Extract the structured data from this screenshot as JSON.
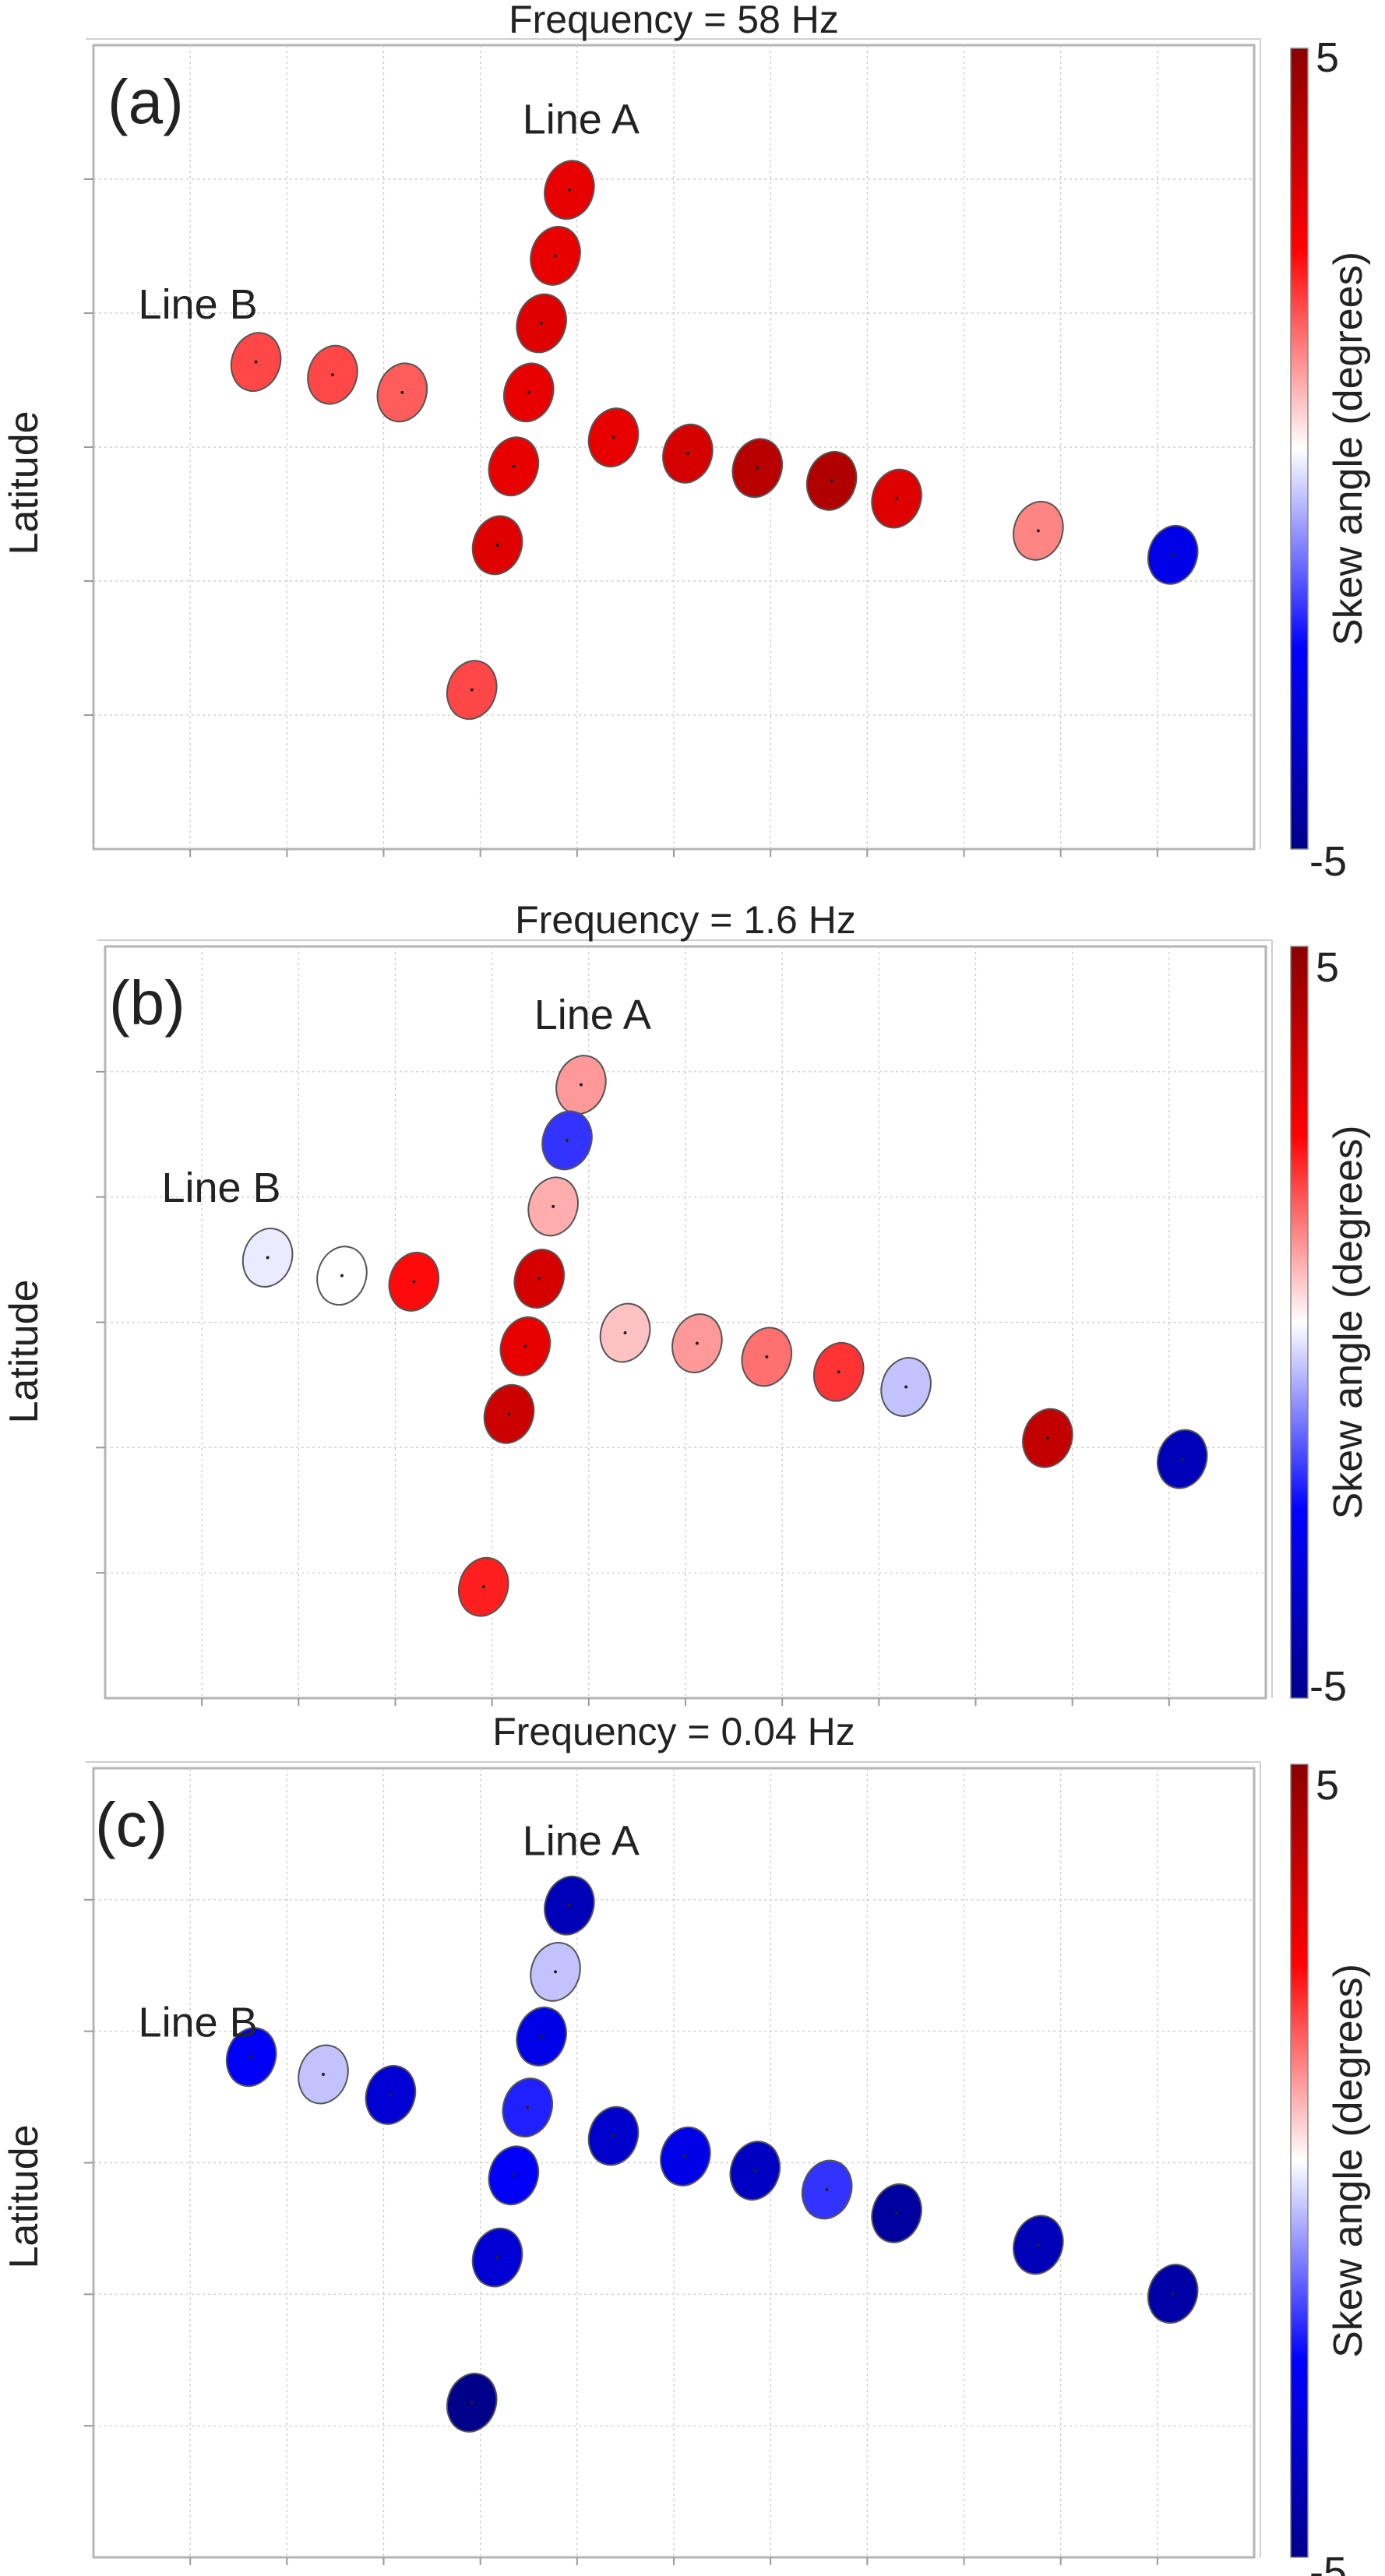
{
  "figure": {
    "ylabel": "Latitude",
    "colorbar": {
      "label": "Skew angle (degrees)",
      "min": -5,
      "max": 5,
      "ticks": [
        "5",
        "-5"
      ],
      "colors": {
        "low": "#00008b",
        "mid_low": "#0000ff",
        "mid": "#ffffff",
        "mid_high": "#ff0000",
        "high": "#8b0000"
      }
    },
    "line_labels": [
      "Line A",
      "Line B"
    ]
  },
  "chart_data": [
    {
      "type": "scatter",
      "panel": "(a)",
      "title": "Frequency = 58 Hz",
      "xlabel": "",
      "ylabel": "Latitude",
      "grid": true,
      "xlim": [
        0,
        100
      ],
      "ylim": [
        0,
        100
      ],
      "color_scale": [
        -5,
        5
      ],
      "annotations": [
        {
          "text": "Line A",
          "x": 42,
          "y": 89
        },
        {
          "text": "Line B",
          "x": 9,
          "y": 66
        }
      ],
      "points": [
        {
          "x": 41.0,
          "y": 82.0,
          "skew": 3.0
        },
        {
          "x": 39.8,
          "y": 73.8,
          "skew": 3.0
        },
        {
          "x": 38.6,
          "y": 65.4,
          "skew": 3.2
        },
        {
          "x": 37.5,
          "y": 56.8,
          "skew": 3.0
        },
        {
          "x": 36.2,
          "y": 47.6,
          "skew": 3.0
        },
        {
          "x": 34.8,
          "y": 37.8,
          "skew": 3.2
        },
        {
          "x": 32.6,
          "y": 19.8,
          "skew": 1.8
        },
        {
          "x": 14.0,
          "y": 60.6,
          "skew": 1.8
        },
        {
          "x": 20.6,
          "y": 59.0,
          "skew": 1.8
        },
        {
          "x": 26.6,
          "y": 56.8,
          "skew": 1.6
        },
        {
          "x": 44.8,
          "y": 51.2,
          "skew": 3.0
        },
        {
          "x": 51.2,
          "y": 49.2,
          "skew": 3.4
        },
        {
          "x": 57.2,
          "y": 47.4,
          "skew": 4.0
        },
        {
          "x": 63.6,
          "y": 45.8,
          "skew": 4.2
        },
        {
          "x": 69.2,
          "y": 43.6,
          "skew": 3.2
        },
        {
          "x": 81.4,
          "y": 39.6,
          "skew": 1.2
        },
        {
          "x": 93.0,
          "y": 36.6,
          "skew": -3.0
        }
      ]
    },
    {
      "type": "scatter",
      "panel": "(b)",
      "title": "Frequency = 1.6 Hz",
      "xlabel": "",
      "ylabel": "Latitude",
      "grid": true,
      "xlim": [
        0,
        100
      ],
      "ylim": [
        0,
        100
      ],
      "color_scale": [
        -5,
        5
      ],
      "annotations": [
        {
          "text": "Line A",
          "x": 42,
          "y": 89
        },
        {
          "text": "Line B",
          "x": 10,
          "y": 66
        }
      ],
      "points": [
        {
          "x": 41.0,
          "y": 81.6,
          "skew": 1.0
        },
        {
          "x": 39.8,
          "y": 74.2,
          "skew": -2.0
        },
        {
          "x": 38.6,
          "y": 65.4,
          "skew": 0.8
        },
        {
          "x": 37.4,
          "y": 55.8,
          "skew": 3.4
        },
        {
          "x": 36.2,
          "y": 46.8,
          "skew": 3.0
        },
        {
          "x": 34.8,
          "y": 37.8,
          "skew": 3.6
        },
        {
          "x": 32.6,
          "y": 14.8,
          "skew": 2.2
        },
        {
          "x": 14.0,
          "y": 58.6,
          "skew": -0.2
        },
        {
          "x": 20.4,
          "y": 56.2,
          "skew": 0.0
        },
        {
          "x": 26.6,
          "y": 55.4,
          "skew": 2.4
        },
        {
          "x": 44.8,
          "y": 48.6,
          "skew": 0.6
        },
        {
          "x": 51.0,
          "y": 47.2,
          "skew": 1.0
        },
        {
          "x": 57.0,
          "y": 45.4,
          "skew": 1.4
        },
        {
          "x": 63.2,
          "y": 43.4,
          "skew": 2.0
        },
        {
          "x": 69.0,
          "y": 41.4,
          "skew": -0.6
        },
        {
          "x": 81.2,
          "y": 34.6,
          "skew": 3.8
        },
        {
          "x": 92.8,
          "y": 31.8,
          "skew": -4.0
        }
      ]
    },
    {
      "type": "scatter",
      "panel": "(c)",
      "title": "Frequency = 0.04 Hz",
      "xlabel": "",
      "ylabel": "Latitude",
      "grid": true,
      "xlim": [
        0,
        100
      ],
      "ylim": [
        0,
        100
      ],
      "color_scale": [
        -5,
        5
      ],
      "annotations": [
        {
          "text": "Line A",
          "x": 42,
          "y": 89
        },
        {
          "text": "Line B",
          "x": 9,
          "y": 66
        }
      ],
      "points": [
        {
          "x": 41.0,
          "y": 82.6,
          "skew": -4.0
        },
        {
          "x": 39.8,
          "y": 74.2,
          "skew": -0.6
        },
        {
          "x": 38.6,
          "y": 66.0,
          "skew": -3.0
        },
        {
          "x": 37.4,
          "y": 57.0,
          "skew": -2.2
        },
        {
          "x": 36.2,
          "y": 48.4,
          "skew": -2.6
        },
        {
          "x": 34.8,
          "y": 38.0,
          "skew": -3.4
        },
        {
          "x": 32.6,
          "y": 19.6,
          "skew": -5.0
        },
        {
          "x": 13.6,
          "y": 63.4,
          "skew": -2.6
        },
        {
          "x": 19.8,
          "y": 61.2,
          "skew": -0.6
        },
        {
          "x": 25.6,
          "y": 58.6,
          "skew": -3.4
        },
        {
          "x": 44.8,
          "y": 53.4,
          "skew": -3.6
        },
        {
          "x": 51.0,
          "y": 50.8,
          "skew": -3.0
        },
        {
          "x": 57.0,
          "y": 49.0,
          "skew": -3.8
        },
        {
          "x": 63.2,
          "y": 46.6,
          "skew": -2.0
        },
        {
          "x": 69.2,
          "y": 43.6,
          "skew": -4.6
        },
        {
          "x": 81.4,
          "y": 39.6,
          "skew": -4.0
        },
        {
          "x": 93.0,
          "y": 33.4,
          "skew": -4.4
        }
      ]
    }
  ]
}
